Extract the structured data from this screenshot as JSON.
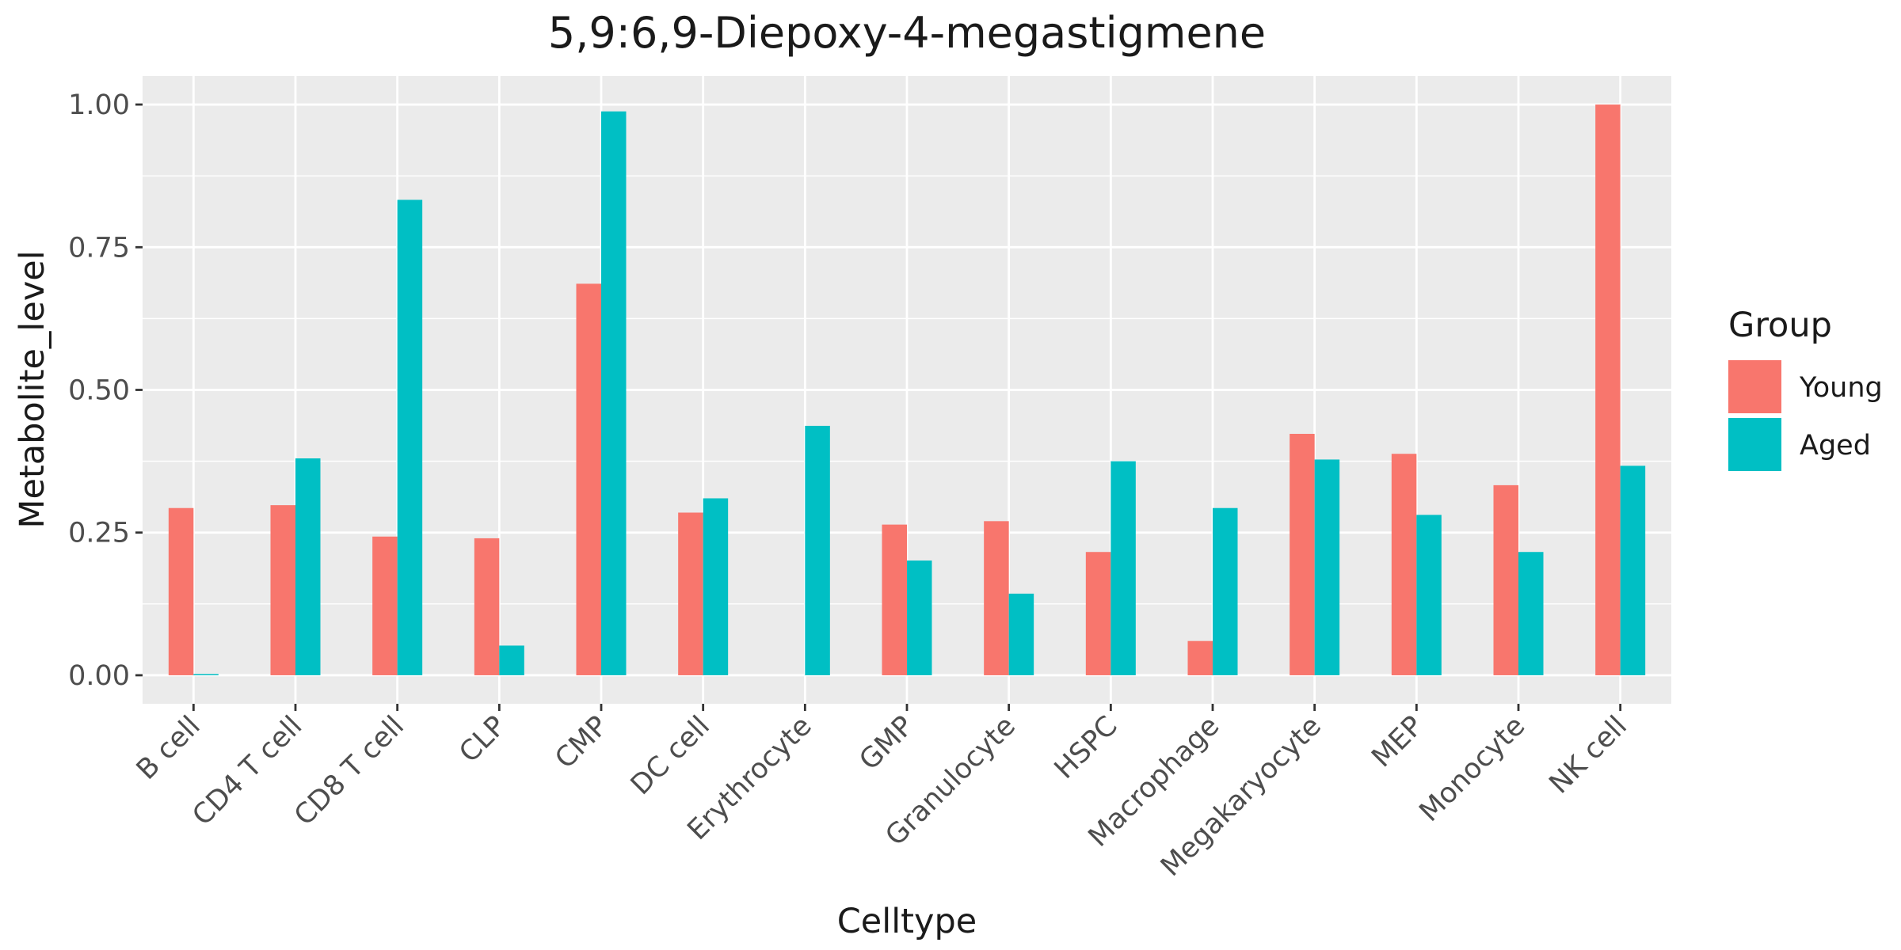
{
  "chart_data": {
    "type": "bar",
    "title": "5,9:6,9-Diepoxy-4-megastigmene",
    "xlabel": "Celltype",
    "ylabel": "Metabolite_level",
    "ylim": [
      -0.05,
      1.05
    ],
    "yticks": [
      0.0,
      0.25,
      0.5,
      0.75,
      1.0
    ],
    "ytick_labels": [
      "0.00",
      "0.25",
      "0.50",
      "0.75",
      "1.00"
    ],
    "grid": true,
    "legend_title": "Group",
    "legend_position": "right",
    "categories": [
      "B cell",
      "CD4 T cell",
      "CD8 T cell",
      "CLP",
      "CMP",
      "DC cell",
      "Erythrocyte",
      "GMP",
      "Granulocyte",
      "HSPC",
      "Macrophage",
      "Megakaryocyte",
      "MEP",
      "Monocyte",
      "NK cell"
    ],
    "series": [
      {
        "name": "Young",
        "color": "#F8766D",
        "values": [
          0.293,
          0.298,
          0.243,
          0.24,
          0.686,
          0.285,
          null,
          0.264,
          0.27,
          0.216,
          0.06,
          0.423,
          0.388,
          0.333,
          1.0
        ]
      },
      {
        "name": "Aged",
        "color": "#00BFC4",
        "values": [
          0.002,
          0.38,
          0.833,
          0.052,
          0.988,
          0.31,
          0.437,
          0.201,
          0.143,
          0.375,
          0.293,
          0.378,
          0.281,
          0.216,
          0.367
        ]
      }
    ]
  }
}
